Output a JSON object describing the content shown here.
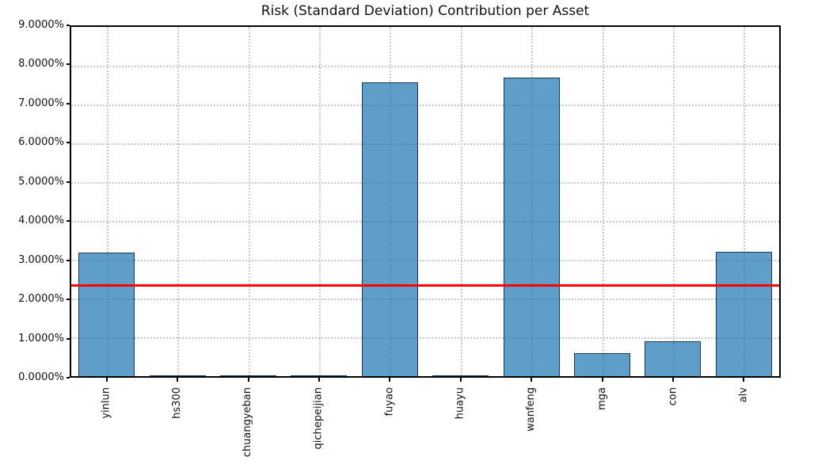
{
  "chart_data": {
    "type": "bar",
    "title": "Risk (Standard Deviation) Contribution per Asset",
    "xlabel": "",
    "ylabel": "",
    "unit": "percent",
    "categories": [
      "yinlun",
      "hs300",
      "chuangyeban",
      "qichepeijian",
      "fuyao",
      "huayu",
      "wanfeng",
      "mga",
      "con",
      "alv"
    ],
    "values": [
      3.19,
      0.002,
      0.002,
      0.002,
      7.58,
      0.002,
      7.69,
      0.59,
      0.9,
      3.21
    ],
    "ylim": [
      0,
      9
    ],
    "ytick_values": [
      9,
      8,
      7,
      6,
      5,
      4,
      3,
      2,
      1,
      0
    ],
    "ytick_labels": [
      "9.0000%",
      "8.0000%",
      "7.0000%",
      "6.0000%",
      "5.0000%",
      "4.0000%",
      "3.0000%",
      "2.0000%",
      "1.0000%",
      "0.0000%"
    ],
    "reference_line": {
      "name": "average-risk-contribution-line",
      "value": 2.33,
      "color": "#ff0000"
    },
    "grid": "dotted-both-axes",
    "legend": "none",
    "colors": {
      "bar_fill": "rgba(31,119,180,0.71)",
      "bar_fill_hex_on_white": "#5f9ec9",
      "bar_edge": "#2e4257",
      "grid": "#c9c9c9",
      "axis": "#000000",
      "background": "#ffffff",
      "text": "#111111"
    }
  }
}
